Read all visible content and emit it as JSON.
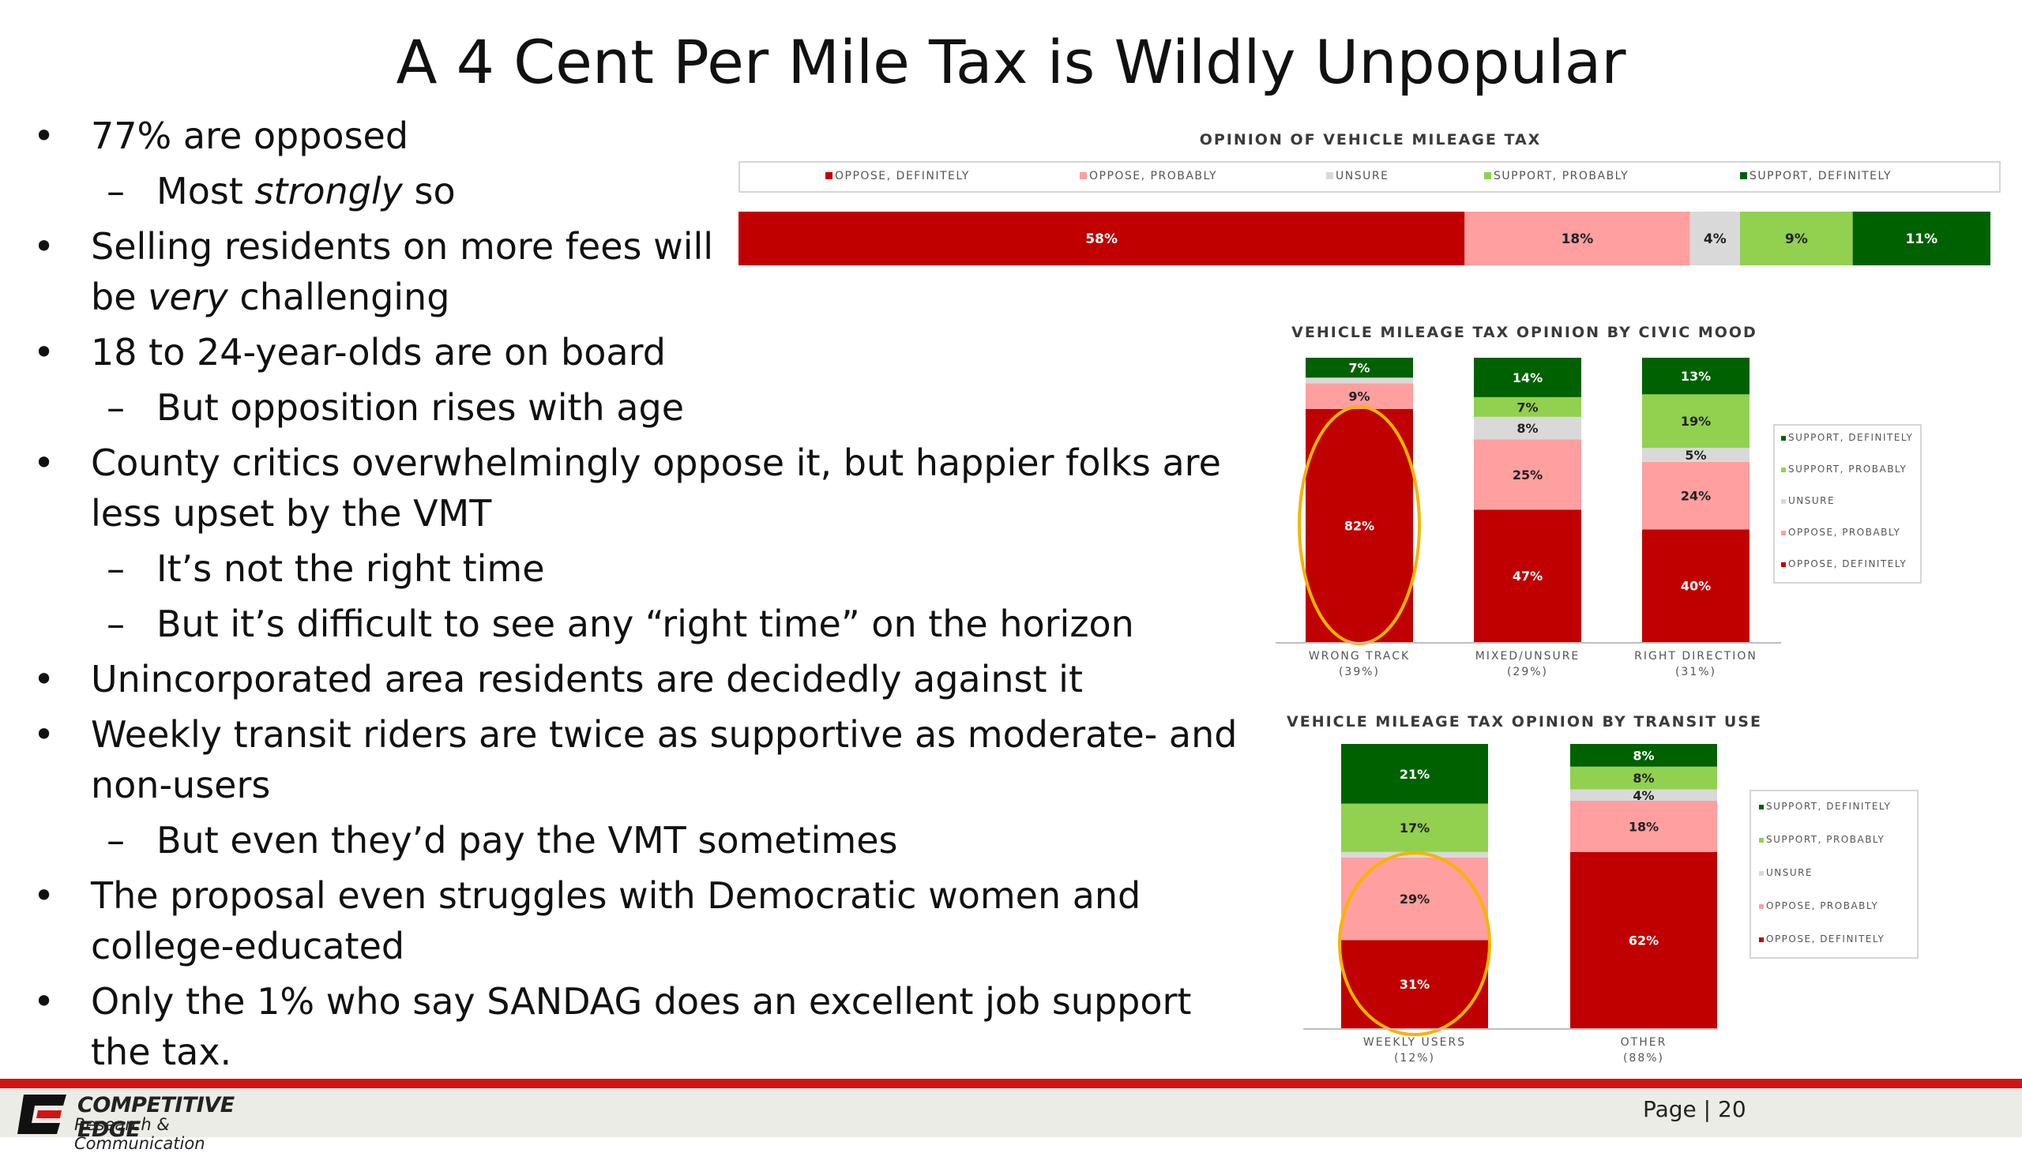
{
  "slide": {
    "title": "A 4 Cent Per Mile Tax is Wildly Unpopular",
    "bullets": {
      "b1": "77% are opposed",
      "s1a": "Most ",
      "s1b": "strongly",
      "s1c": " so",
      "b2a": "Selling residents on more fees will be ",
      "b2b": "very",
      "b2c": " challenging",
      "b3": "18 to 24-year-olds are on board",
      "s3": "But opposition rises with age",
      "b4": "County critics overwhelmingly oppose it, but happier folks are less upset by the VMT",
      "s4a": "It’s not the right time",
      "s4b": "But it’s difficult to see any “right time” on the horizon",
      "b5": "Unincorporated area residents are decidedly against it",
      "b6": "Weekly transit riders are twice as supportive as moderate- and non-users",
      "s6": "But even they’d pay the VMT sometimes",
      "b7": "The proposal even struggles with Democratic women and college-educated",
      "b8": "Only the 1% who say SANDAG does an excellent job support the tax."
    }
  },
  "colors": {
    "oppose_definitely": "#c00000",
    "oppose_probably": "#ff9f9f",
    "unsure": "#d9d9d9",
    "support_probably": "#92d050",
    "support_definitely": "#006100",
    "highlight_circle": "#f5b400"
  },
  "legend_labels": [
    "OPPOSE, DEFINITELY",
    "OPPOSE, PROBABLY",
    "UNSURE",
    "SUPPORT, PROBABLY",
    "SUPPORT, DEFINITELY"
  ],
  "footer": {
    "logo_line1": "COMPETITIVE EDGE",
    "logo_line2": "Research & Communication",
    "page": "Page | 20"
  },
  "chart_data": [
    {
      "type": "bar",
      "orientation": "horizontal-stacked",
      "title": "OPINION OF VEHICLE MILEAGE TAX",
      "series": [
        {
          "name": "OPPOSE, DEFINITELY",
          "values": [
            58
          ],
          "labels": [
            "58%"
          ]
        },
        {
          "name": "OPPOSE, PROBABLY",
          "values": [
            18
          ],
          "labels": [
            "18%"
          ]
        },
        {
          "name": "UNSURE",
          "values": [
            4
          ],
          "labels": [
            "4%"
          ]
        },
        {
          "name": "SUPPORT, PROBABLY",
          "values": [
            9
          ],
          "labels": [
            "9%"
          ]
        },
        {
          "name": "SUPPORT, DEFINITELY",
          "values": [
            11
          ],
          "labels": [
            "11%"
          ]
        }
      ],
      "legend_position": "top"
    },
    {
      "type": "bar",
      "orientation": "vertical-stacked",
      "title": "VEHICLE MILEAGE TAX OPINION BY CIVIC MOOD",
      "categories": [
        "WRONG TRACK",
        "MIXED/UNSURE",
        "RIGHT DIRECTION"
      ],
      "category_sublabels": [
        "(39%)",
        "(29%)",
        "(31%)"
      ],
      "series": [
        {
          "name": "OPPOSE, DEFINITELY",
          "values": [
            82,
            47,
            40
          ],
          "labels": [
            "82%",
            "47%",
            "40%"
          ]
        },
        {
          "name": "OPPOSE, PROBABLY",
          "values": [
            9,
            25,
            24
          ],
          "labels": [
            "9%",
            "25%",
            "24%"
          ]
        },
        {
          "name": "UNSURE",
          "values": [
            2,
            8,
            5
          ],
          "labels": [
            "",
            "8%",
            "5%"
          ]
        },
        {
          "name": "SUPPORT, PROBABLY",
          "values": [
            0,
            7,
            19
          ],
          "labels": [
            "",
            "7%",
            "19%"
          ]
        },
        {
          "name": "SUPPORT, DEFINITELY",
          "values": [
            7,
            14,
            13
          ],
          "labels": [
            "7%",
            "14%",
            "13%"
          ]
        }
      ],
      "legend_labels_top_down": [
        "SUPPORT, DEFINITELY",
        "SUPPORT, PROBABLY",
        "UNSURE",
        "OPPOSE, PROBABLY",
        "OPPOSE, DEFINITELY"
      ],
      "legend_position": "right",
      "highlighted_category": "WRONG TRACK"
    },
    {
      "type": "bar",
      "orientation": "vertical-stacked",
      "title": "VEHICLE MILEAGE TAX OPINION BY TRANSIT USE",
      "categories": [
        "WEEKLY USERS",
        "OTHER"
      ],
      "category_sublabels": [
        "(12%)",
        "(88%)"
      ],
      "series": [
        {
          "name": "OPPOSE, DEFINITELY",
          "values": [
            31,
            62
          ],
          "labels": [
            "31%",
            "62%"
          ]
        },
        {
          "name": "OPPOSE, PROBABLY",
          "values": [
            29,
            18
          ],
          "labels": [
            "29%",
            "18%"
          ]
        },
        {
          "name": "UNSURE",
          "values": [
            2,
            4
          ],
          "labels": [
            "",
            "4%"
          ]
        },
        {
          "name": "SUPPORT, PROBABLY",
          "values": [
            17,
            8
          ],
          "labels": [
            "17%",
            "8%"
          ]
        },
        {
          "name": "SUPPORT, DEFINITELY",
          "values": [
            21,
            8
          ],
          "labels": [
            "21%",
            "8%"
          ]
        }
      ],
      "legend_labels_top_down": [
        "SUPPORT, DEFINITELY",
        "SUPPORT, PROBABLY",
        "UNSURE",
        "OPPOSE, PROBABLY",
        "OPPOSE, DEFINITELY"
      ],
      "legend_position": "right",
      "highlighted_category": "WEEKLY USERS"
    }
  ]
}
